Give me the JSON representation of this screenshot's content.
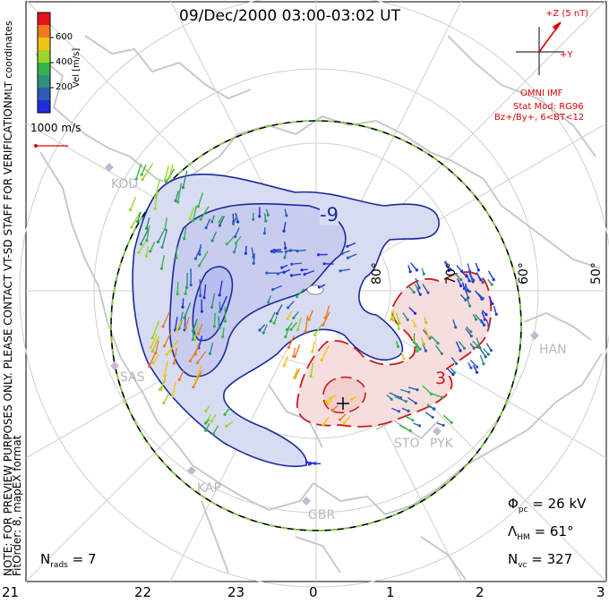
{
  "title": "09/Dec/2000 03:00-03:02 UT",
  "colorbar": {
    "unit_label": "Vel [m/s]",
    "coord_label": "MLT coordinates",
    "ticks": [
      "600",
      "400",
      "200"
    ],
    "colors": [
      "#e8141a",
      "#f07a1e",
      "#f0c414",
      "#9ad62a",
      "#36b54a",
      "#2f8f7c",
      "#2a5cb8",
      "#1f2fe0"
    ]
  },
  "vector_scale": "1000 m/s",
  "imf": {
    "z_label": "+Z (5 nT)",
    "y_label": "+Y",
    "source": "OMNI IMF",
    "model": "Stat Mod: RG96",
    "condition": "Bz+/By+, 6<BT<12"
  },
  "contours": {
    "neg_label": "-9",
    "pos_label": "3"
  },
  "latitudes": [
    "80°",
    "70°",
    "60°",
    "50°"
  ],
  "stations": [
    "KOD",
    "SAS",
    "KAP",
    "GBR",
    "STO",
    "PYK",
    "HAN"
  ],
  "mlt_labels": [
    "21",
    "22",
    "23",
    "0",
    "1",
    "2",
    "3"
  ],
  "stats": {
    "phi_pc": "= 26 kV",
    "lambda_hm": "= 61°",
    "n_vc": "= 327",
    "n_rads": "= 7"
  },
  "notes": {
    "preview": "NOTE: FOR PREVIEW PURPOSES ONLY. PLEASE CONTACT VT-SD STAFF FOR VERIFICATION.",
    "fitorder": "FitOrder: 8, mapEX format"
  },
  "colors": {
    "negative_cell": "#1a2aa0",
    "negative_fill": "#d8dcf2",
    "positive_cell": "#d01818",
    "positive_fill": "#f7dede",
    "coast": "#c9c9c9",
    "boundary_a": "#7ad23a",
    "boundary_b": "#000000"
  }
}
